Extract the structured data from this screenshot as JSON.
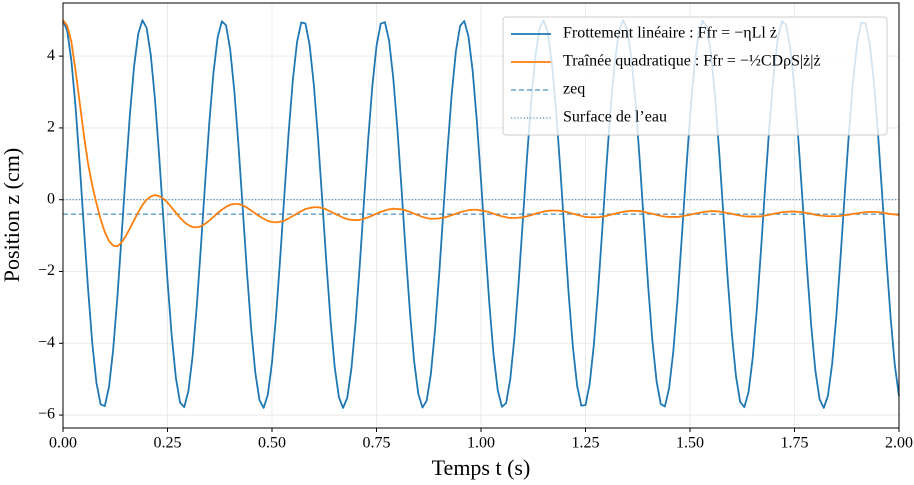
{
  "chart_data": {
    "type": "line",
    "xlabel": "Temps t (s)",
    "ylabel": "Position z (cm)",
    "x": [
      0,
      0.01,
      0.02,
      0.03,
      0.04,
      0.05,
      0.06,
      0.07,
      0.08,
      0.09,
      0.1,
      0.11,
      0.12,
      0.13,
      0.14,
      0.15,
      0.16,
      0.17,
      0.18,
      0.19,
      0.2,
      0.21,
      0.22,
      0.23,
      0.24,
      0.25,
      0.26,
      0.27,
      0.28,
      0.29,
      0.3,
      0.31,
      0.32,
      0.33,
      0.34,
      0.35,
      0.36,
      0.37,
      0.38,
      0.39,
      0.4,
      0.41,
      0.42,
      0.43,
      0.44,
      0.45,
      0.46,
      0.47,
      0.48,
      0.49,
      0.5,
      0.51,
      0.52,
      0.53,
      0.54,
      0.55,
      0.56,
      0.57,
      0.58,
      0.59,
      0.6,
      0.61,
      0.62,
      0.63,
      0.64,
      0.65,
      0.66,
      0.67,
      0.68,
      0.69,
      0.7,
      0.71,
      0.72,
      0.73,
      0.74,
      0.75,
      0.76,
      0.77,
      0.78,
      0.79,
      0.8,
      0.81,
      0.82,
      0.83,
      0.84,
      0.85,
      0.86,
      0.87,
      0.88,
      0.89,
      0.9,
      0.91,
      0.92,
      0.93,
      0.94,
      0.95,
      0.96,
      0.97,
      0.98,
      0.99,
      1,
      1.01,
      1.02,
      1.03,
      1.04,
      1.05,
      1.06,
      1.07,
      1.08,
      1.09,
      1.1,
      1.11,
      1.12,
      1.13,
      1.14,
      1.15,
      1.16,
      1.17,
      1.18,
      1.19,
      1.2,
      1.21,
      1.22,
      1.23,
      1.24,
      1.25,
      1.26,
      1.27,
      1.28,
      1.29,
      1.3,
      1.31,
      1.32,
      1.33,
      1.34,
      1.35,
      1.36,
      1.37,
      1.38,
      1.39,
      1.4,
      1.41,
      1.42,
      1.43,
      1.44,
      1.45,
      1.46,
      1.47,
      1.48,
      1.49,
      1.5,
      1.51,
      1.52,
      1.53,
      1.54,
      1.55,
      1.56,
      1.57,
      1.58,
      1.59,
      1.6,
      1.61,
      1.62,
      1.63,
      1.64,
      1.65,
      1.66,
      1.67,
      1.68,
      1.69,
      1.7,
      1.71,
      1.72,
      1.73,
      1.74,
      1.75,
      1.76,
      1.77,
      1.78,
      1.79,
      1.8,
      1.81,
      1.82,
      1.83,
      1.84,
      1.85,
      1.86,
      1.87,
      1.88,
      1.89,
      1.9,
      1.91,
      1.92,
      1.93,
      1.94,
      1.95,
      1.96,
      1.97,
      1.98,
      1.99,
      2
    ],
    "series": [
      {
        "name": "Frottement linéaire : Ffr = −ηLl ż",
        "color": "#1f77b4",
        "values": [
          5.0,
          4.71,
          3.88,
          2.59,
          0.98,
          -0.78,
          -2.49,
          -3.99,
          -5.1,
          -5.7,
          -5.75,
          -5.22,
          -4.18,
          -2.73,
          -1.04,
          0.72,
          2.36,
          3.71,
          4.62,
          5.0,
          4.79,
          4.03,
          2.8,
          1.23,
          -0.51,
          -2.25,
          -3.78,
          -4.96,
          -5.65,
          -5.78,
          -5.33,
          -4.36,
          -2.97,
          -1.3,
          0.46,
          2.14,
          3.54,
          4.52,
          4.97,
          4.86,
          4.18,
          3.01,
          1.48,
          -0.25,
          -2.0,
          -3.57,
          -4.81,
          -5.58,
          -5.8,
          -5.43,
          -4.54,
          -3.2,
          -1.56,
          0.2,
          1.9,
          3.35,
          4.4,
          4.94,
          4.91,
          4.31,
          3.21,
          1.73,
          0.01,
          -1.74,
          -3.36,
          -4.66,
          -5.5,
          -5.8,
          -5.52,
          -4.7,
          -3.42,
          -1.82,
          -0.06,
          1.66,
          3.16,
          4.28,
          4.9,
          4.95,
          4.44,
          3.4,
          1.97,
          0.28,
          -1.49,
          -3.13,
          -4.49,
          -5.41,
          -5.79,
          -5.6,
          -4.86,
          -3.63,
          -2.07,
          -0.32,
          1.41,
          2.95,
          4.14,
          4.84,
          4.98,
          4.55,
          3.59,
          2.2,
          0.54,
          -1.23,
          -2.9,
          -4.31,
          -5.3,
          -5.77,
          -5.67,
          -5.0,
          -3.84,
          -2.32,
          -0.59,
          1.16,
          2.74,
          3.99,
          4.77,
          5.0,
          4.65,
          3.76,
          2.43,
          0.8,
          -0.96,
          -2.67,
          -4.12,
          -5.19,
          -5.74,
          -5.72,
          -5.13,
          -4.04,
          -2.56,
          -0.85,
          0.91,
          2.53,
          3.83,
          4.69,
          5.0,
          4.74,
          3.92,
          2.65,
          1.05,
          -0.7,
          -2.42,
          -3.93,
          -5.06,
          -5.69,
          -5.76,
          -5.25,
          -4.23,
          -2.8,
          -1.11,
          0.65,
          2.3,
          3.66,
          4.59,
          4.99,
          4.81,
          4.08,
          2.87,
          1.3,
          -0.44,
          -2.18,
          -3.72,
          -4.92,
          -5.63,
          -5.78,
          -5.36,
          -4.41,
          -3.03,
          -1.37,
          0.39,
          2.07,
          3.48,
          4.49,
          4.97,
          4.87,
          4.22,
          3.07,
          1.55,
          -0.17,
          -1.92,
          -3.51,
          -4.77,
          -5.56,
          -5.8,
          -5.46,
          -4.58,
          -3.26,
          -1.63,
          0.13,
          1.83,
          3.3,
          4.37,
          4.93,
          4.92,
          4.35,
          3.27,
          1.8,
          0.09,
          -1.67,
          -3.29,
          -4.61,
          -5.47
        ]
      },
      {
        "name": "Traînée quadratique : Ffr = −½CDρS|ż|ż",
        "color": "#ff7f0e",
        "values": [
          5.0,
          4.85,
          4.4,
          3.6,
          2.7,
          1.8,
          1.0,
          0.4,
          -0.1,
          -0.55,
          -0.9,
          -1.15,
          -1.28,
          -1.3,
          -1.19,
          -1.02,
          -0.8,
          -0.57,
          -0.35,
          -0.15,
          0.0,
          0.09,
          0.13,
          0.1,
          0.03,
          -0.08,
          -0.22,
          -0.36,
          -0.5,
          -0.62,
          -0.71,
          -0.76,
          -0.77,
          -0.74,
          -0.67,
          -0.58,
          -0.48,
          -0.37,
          -0.28,
          -0.2,
          -0.14,
          -0.12,
          -0.12,
          -0.16,
          -0.22,
          -0.3,
          -0.38,
          -0.46,
          -0.53,
          -0.59,
          -0.62,
          -0.63,
          -0.61,
          -0.58,
          -0.52,
          -0.45,
          -0.38,
          -0.32,
          -0.26,
          -0.23,
          -0.21,
          -0.21,
          -0.23,
          -0.27,
          -0.33,
          -0.39,
          -0.44,
          -0.5,
          -0.54,
          -0.56,
          -0.57,
          -0.56,
          -0.53,
          -0.49,
          -0.44,
          -0.39,
          -0.34,
          -0.3,
          -0.27,
          -0.25,
          -0.26,
          -0.27,
          -0.3,
          -0.34,
          -0.39,
          -0.43,
          -0.48,
          -0.51,
          -0.53,
          -0.53,
          -0.52,
          -0.5,
          -0.47,
          -0.43,
          -0.39,
          -0.35,
          -0.32,
          -0.29,
          -0.28,
          -0.28,
          -0.3,
          -0.32,
          -0.35,
          -0.39,
          -0.43,
          -0.46,
          -0.49,
          -0.51,
          -0.51,
          -0.5,
          -0.49,
          -0.46,
          -0.43,
          -0.39,
          -0.36,
          -0.33,
          -0.31,
          -0.3,
          -0.3,
          -0.31,
          -0.33,
          -0.36,
          -0.39,
          -0.42,
          -0.45,
          -0.48,
          -0.49,
          -0.49,
          -0.49,
          -0.47,
          -0.45,
          -0.42,
          -0.39,
          -0.36,
          -0.34,
          -0.32,
          -0.31,
          -0.31,
          -0.32,
          -0.34,
          -0.37,
          -0.39,
          -0.42,
          -0.45,
          -0.47,
          -0.48,
          -0.48,
          -0.48,
          -0.46,
          -0.44,
          -0.42,
          -0.39,
          -0.37,
          -0.35,
          -0.33,
          -0.32,
          -0.32,
          -0.33,
          -0.35,
          -0.37,
          -0.39,
          -0.42,
          -0.44,
          -0.46,
          -0.47,
          -0.47,
          -0.47,
          -0.46,
          -0.44,
          -0.42,
          -0.39,
          -0.37,
          -0.35,
          -0.34,
          -0.33,
          -0.33,
          -0.34,
          -0.35,
          -0.37,
          -0.39,
          -0.42,
          -0.44,
          -0.45,
          -0.46,
          -0.46,
          -0.46,
          -0.45,
          -0.43,
          -0.42,
          -0.39,
          -0.38,
          -0.36,
          -0.35,
          -0.34,
          -0.34,
          -0.35,
          -0.36,
          -0.38,
          -0.4,
          -0.41,
          -0.43
        ]
      }
    ],
    "reference_lines": [
      {
        "name": "zeq",
        "value": -0.4,
        "color": "#1f77b4",
        "style": "dashed"
      },
      {
        "name": "Surface de l’eau",
        "value": 0,
        "color": "#1f77b4",
        "style": "dotted"
      }
    ],
    "xlim": [
      0,
      2
    ],
    "ylim": [
      -6.36,
      5.48
    ],
    "xticks": [
      {
        "value": 0,
        "label": "0.00"
      },
      {
        "value": 0.25,
        "label": "0.25"
      },
      {
        "value": 0.5,
        "label": "0.50"
      },
      {
        "value": 0.75,
        "label": "0.75"
      },
      {
        "value": 1,
        "label": "1.00"
      },
      {
        "value": 1.25,
        "label": "1.25"
      },
      {
        "value": 1.5,
        "label": "1.50"
      },
      {
        "value": 1.75,
        "label": "1.75"
      },
      {
        "value": 2,
        "label": "2.00"
      }
    ],
    "yticks": [
      {
        "value": -6,
        "label": "−6"
      },
      {
        "value": -4,
        "label": "−4"
      },
      {
        "value": -2,
        "label": "−2"
      },
      0,
      2,
      4
    ],
    "grid": true,
    "legend": "upper right"
  }
}
